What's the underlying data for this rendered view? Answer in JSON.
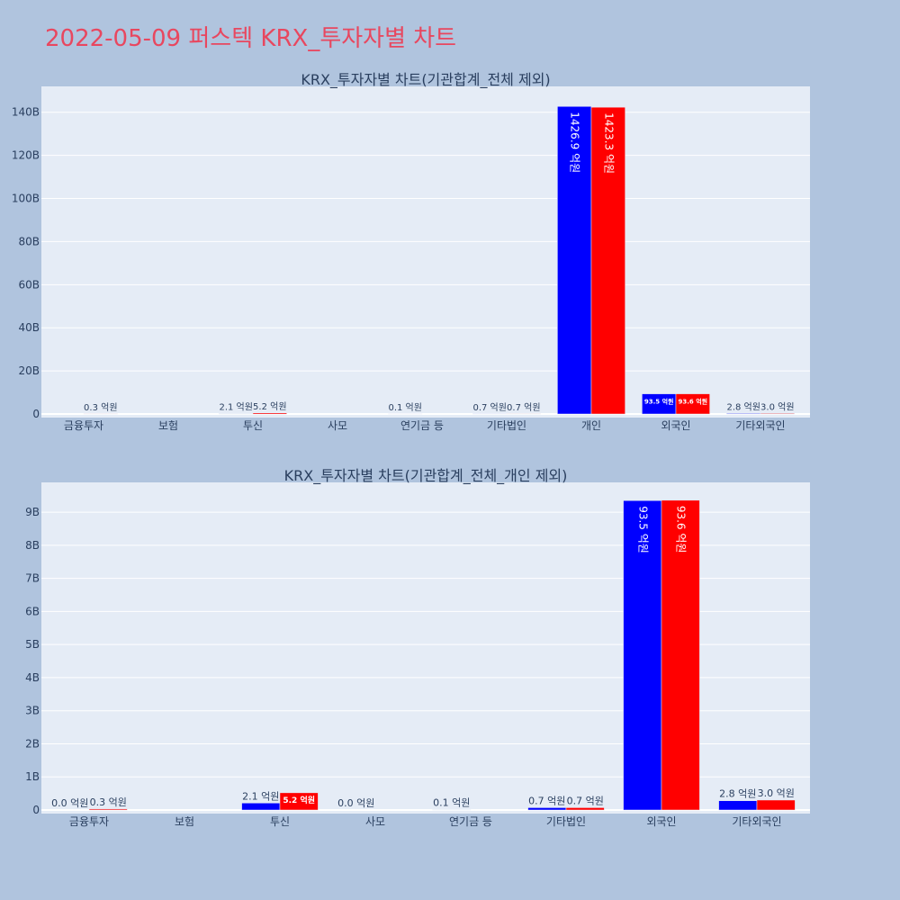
{
  "page": {
    "title": "2022-05-09 퍼스텍 KRX_투자자별 차트"
  },
  "colors": {
    "background": "#b0c4de",
    "plot_bg": "#e5ecf6",
    "title": "#e8475f",
    "series_a": "#0000ff",
    "series_b": "#ff0000",
    "text": "#2a3f5f"
  },
  "chart_data": [
    {
      "type": "bar",
      "title": "KRX_투자자별 차트(기관합계_전체 제외)",
      "categories": [
        "금융투자",
        "보험",
        "투신",
        "사모",
        "연기금 등",
        "기타법인",
        "개인",
        "외국인",
        "기타외국인"
      ],
      "ylim": [
        0,
        152
      ],
      "y_unit": "B",
      "y_ticks": [
        0,
        20,
        40,
        60,
        80,
        100,
        120,
        140
      ],
      "y_tick_labels": [
        "0",
        "20B",
        "40B",
        "60B",
        "80B",
        "100B",
        "120B",
        "140B"
      ],
      "grid": true,
      "series": [
        {
          "color": "#0000ff",
          "values": [
            0,
            0,
            0.21,
            0,
            0.01,
            0.07,
            142.69,
            9.35,
            0.28
          ],
          "labels": [
            "",
            "",
            "2.1 억원",
            "",
            "0.1 억원",
            "0.7 억원",
            "1426.9 억원",
            "93.5 억원",
            "2.8 억원"
          ]
        },
        {
          "color": "#ff0000",
          "values": [
            0.03,
            0,
            0.52,
            0,
            0,
            0.07,
            142.33,
            9.36,
            0.3
          ],
          "labels": [
            "0.3 억원",
            "",
            "5.2 억원",
            "",
            "",
            "0.7 억원",
            "1423.3 억원",
            "93.6 억원",
            "3.0 억원"
          ]
        }
      ]
    },
    {
      "type": "bar",
      "title": "KRX_투자자별 차트(기관합계_전체_개인 제외)",
      "categories": [
        "금융투자",
        "보험",
        "투신",
        "사모",
        "연기금 등",
        "기타법인",
        "외국인",
        "기타외국인"
      ],
      "ylim": [
        0,
        9.9
      ],
      "y_unit": "B",
      "y_ticks": [
        0,
        1,
        2,
        3,
        4,
        5,
        6,
        7,
        8,
        9
      ],
      "y_tick_labels": [
        "0",
        "1B",
        "2B",
        "3B",
        "4B",
        "5B",
        "6B",
        "7B",
        "8B",
        "9B"
      ],
      "grid": true,
      "series": [
        {
          "color": "#0000ff",
          "values": [
            0.0,
            0,
            0.21,
            0.0,
            0.01,
            0.07,
            9.35,
            0.28
          ],
          "labels": [
            "0.0 억원",
            "",
            "2.1 억원",
            "0.0 억원",
            "0.1 억원",
            "0.7 억원",
            "93.5 억원",
            "2.8 억원"
          ]
        },
        {
          "color": "#ff0000",
          "values": [
            0.03,
            0,
            0.52,
            0,
            0,
            0.07,
            9.36,
            0.3
          ],
          "labels": [
            "0.3 억원",
            "",
            "5.2 억원",
            "",
            "",
            "0.7 억원",
            "93.6 억원",
            "3.0 억원"
          ]
        }
      ]
    }
  ]
}
